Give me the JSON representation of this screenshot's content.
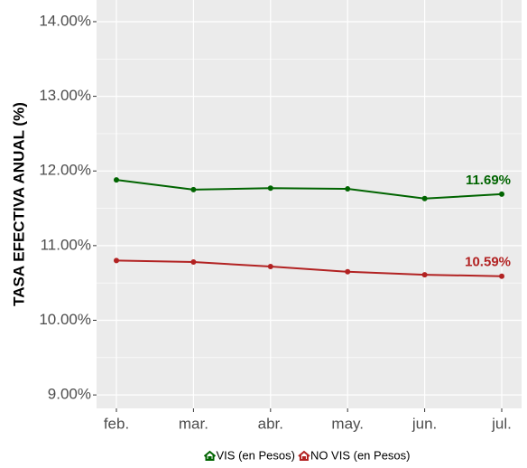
{
  "chart_data": {
    "type": "line",
    "y_label": "TASA EFECTIVA ANUAL (%)",
    "categories": [
      "feb.",
      "mar.",
      "abr.",
      "may.",
      "jun.",
      "jul."
    ],
    "series": [
      {
        "name": "VIS (en Pesos)",
        "color": "#006400",
        "values": [
          11.88,
          11.75,
          11.77,
          11.76,
          11.63,
          11.69
        ],
        "value_labels": [
          null,
          null,
          null,
          null,
          null,
          "11.69%"
        ]
      },
      {
        "name": "NO VIS (en Pesos)",
        "color": "#b22222",
        "values": [
          10.8,
          10.78,
          10.72,
          10.65,
          10.61,
          10.59
        ],
        "value_labels": [
          null,
          null,
          null,
          null,
          null,
          "10.59%"
        ]
      }
    ],
    "ylim": [
      8.82,
      14.29
    ],
    "yticks": [
      {
        "value": 9,
        "label": "9.00%"
      },
      {
        "value": 10,
        "label": "10.00%"
      },
      {
        "value": 11,
        "label": "11.00%"
      },
      {
        "value": 12,
        "label": "12.00%"
      },
      {
        "value": 13,
        "label": "13.00%"
      },
      {
        "value": 14,
        "label": "14.00%"
      }
    ],
    "grid": true,
    "legend": "bottom"
  }
}
